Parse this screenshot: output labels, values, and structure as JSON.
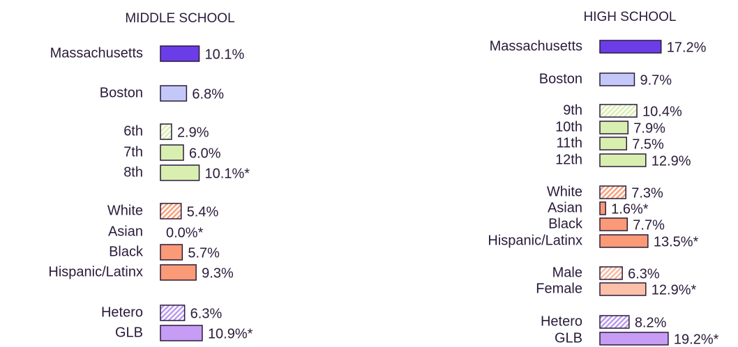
{
  "chart_data": [
    {
      "type": "barh",
      "title": "MIDDLE SCHOOL",
      "categories": [
        "Massachusetts",
        "Boston",
        "6th",
        "7th",
        "8th",
        "White",
        "Asian",
        "Black",
        "Hispanic/Latinx",
        "Hetero",
        "GLB"
      ],
      "values": [
        10.1,
        6.8,
        2.9,
        6.0,
        10.1,
        5.4,
        0.0,
        5.7,
        9.3,
        6.3,
        10.9
      ],
      "value_labels": [
        "10.1%",
        "6.8%",
        "2.9%",
        "6.0%",
        "10.1%*",
        "5.4%",
        "0.0%*",
        "5.7%",
        "9.3%",
        "6.3%",
        "10.9%*"
      ],
      "colors": [
        "#6b3de8",
        "#c4c8f8",
        "#d9efb0",
        "#d9efb0",
        "#d9efb0",
        "#f7a07c",
        "#fb9a76",
        "#fb9a76",
        "#fb9a76",
        "#b99af0",
        "#c69cf5"
      ],
      "hatched": [
        false,
        false,
        true,
        false,
        false,
        true,
        false,
        false,
        false,
        true,
        false
      ]
    },
    {
      "type": "barh",
      "title": "HIGH SCHOOL",
      "categories": [
        "Massachusetts",
        "Boston",
        "9th",
        "10th",
        "11th",
        "12th",
        "White",
        "Asian",
        "Black",
        "Hispanic/Latinx",
        "Male",
        "Female",
        "Hetero",
        "GLB"
      ],
      "values": [
        17.2,
        9.7,
        10.4,
        7.9,
        7.5,
        12.9,
        7.3,
        1.6,
        7.7,
        13.5,
        6.3,
        12.9,
        8.2,
        19.2
      ],
      "value_labels": [
        "17.2%",
        "9.7%",
        "10.4%",
        "7.9%",
        "7.5%",
        "12.9%",
        "7.3%",
        "1.6%*",
        "7.7%",
        "13.5%*",
        "6.3%",
        "12.9%*",
        "8.2%",
        "19.2%*"
      ],
      "colors": [
        "#6b3de8",
        "#c4c8f8",
        "#d9efb0",
        "#d9efb0",
        "#d9efb0",
        "#d9efb0",
        "#f7a07c",
        "#fb9a76",
        "#fb9a76",
        "#fb9a76",
        "#f9b89c",
        "#fac0a8",
        "#b99af0",
        "#c69cf5"
      ],
      "hatched": [
        false,
        false,
        true,
        false,
        false,
        false,
        true,
        false,
        false,
        false,
        true,
        false,
        true,
        false
      ]
    }
  ]
}
